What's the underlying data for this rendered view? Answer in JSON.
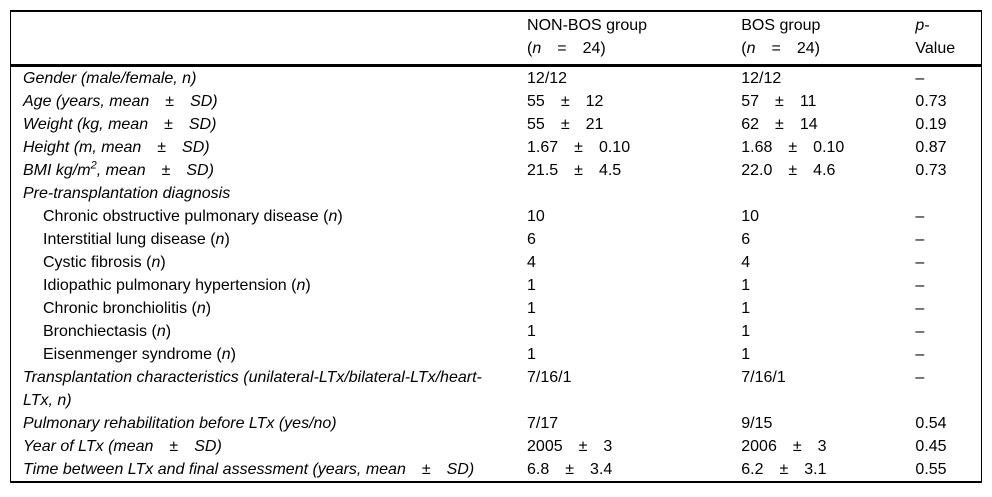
{
  "page": {
    "background": "#ffffff",
    "text_color": "#000000",
    "rule_color": "#000000"
  },
  "table": {
    "header": {
      "parameter": "",
      "non_bos": {
        "line1": "NON-BOS group",
        "l2a": "(",
        "l2n": "n",
        "l2b": " = 24)"
      },
      "bos": {
        "line1": "BOS group",
        "l2a": "(",
        "l2n": "n",
        "l2b": " = 24)"
      },
      "p": {
        "l1i": "p",
        "l1r": "-",
        "line2": "Value"
      }
    },
    "rows": [
      {
        "indent": false,
        "label": [
          {
            "t": "Gender (male/female, n)",
            "i": true
          }
        ],
        "non_bos": "12/12",
        "bos": "12/12",
        "p": "–"
      },
      {
        "indent": false,
        "label": [
          {
            "t": "Age (years, mean ± SD)",
            "i": true
          }
        ],
        "non_bos": "55 ± 12",
        "bos": "57 ± 11",
        "p": "0.73"
      },
      {
        "indent": false,
        "label": [
          {
            "t": "Weight (kg, mean ± SD)",
            "i": true
          }
        ],
        "non_bos": "55 ± 21",
        "bos": "62 ± 14",
        "p": "0.19"
      },
      {
        "indent": false,
        "label": [
          {
            "t": "Height (m, mean ± SD)",
            "i": true
          }
        ],
        "non_bos": "1.67 ± 0.10",
        "bos": "1.68 ± 0.10",
        "p": "0.87"
      },
      {
        "indent": false,
        "label": [
          {
            "t": "BMI kg/m",
            "i": true
          },
          {
            "t": "2",
            "i": true,
            "sup": true
          },
          {
            "t": ", mean ± SD)",
            "i": true
          }
        ],
        "non_bos": "21.5 ± 4.5",
        "bos": "22.0 ± 4.6",
        "p": "0.73"
      },
      {
        "indent": false,
        "label": [
          {
            "t": "Pre-transplantation diagnosis",
            "i": true
          }
        ],
        "non_bos": "",
        "bos": "",
        "p": ""
      },
      {
        "indent": true,
        "label": [
          {
            "t": "Chronic obstructive pulmonary disease ("
          },
          {
            "t": "n",
            "i": true
          },
          {
            "t": ")"
          }
        ],
        "non_bos": "10",
        "bos": "10",
        "p": "–"
      },
      {
        "indent": true,
        "label": [
          {
            "t": "Interstitial lung disease ("
          },
          {
            "t": "n",
            "i": true
          },
          {
            "t": ")"
          }
        ],
        "non_bos": "6",
        "bos": "6",
        "p": "–"
      },
      {
        "indent": true,
        "label": [
          {
            "t": "Cystic fibrosis ("
          },
          {
            "t": "n",
            "i": true
          },
          {
            "t": ")"
          }
        ],
        "non_bos": "4",
        "bos": "4",
        "p": "–"
      },
      {
        "indent": true,
        "label": [
          {
            "t": "Idiopathic pulmonary hypertension ("
          },
          {
            "t": "n",
            "i": true
          },
          {
            "t": ")"
          }
        ],
        "non_bos": "1",
        "bos": "1",
        "p": "–"
      },
      {
        "indent": true,
        "label": [
          {
            "t": "Chronic bronchiolitis ("
          },
          {
            "t": "n",
            "i": true
          },
          {
            "t": ")"
          }
        ],
        "non_bos": "1",
        "bos": "1",
        "p": "–"
      },
      {
        "indent": true,
        "label": [
          {
            "t": "Bronchiectasis ("
          },
          {
            "t": "n",
            "i": true
          },
          {
            "t": ")"
          }
        ],
        "non_bos": "1",
        "bos": "1",
        "p": "–"
      },
      {
        "indent": true,
        "label": [
          {
            "t": "Eisenmenger syndrome ("
          },
          {
            "t": "n",
            "i": true
          },
          {
            "t": ")"
          }
        ],
        "non_bos": "1",
        "bos": "1",
        "p": "–"
      },
      {
        "indent": false,
        "label": [
          {
            "t": "Transplantation characteristics (unilateral-LTx/bilateral-LTx/heart-",
            "i": true
          },
          {
            "br": true
          },
          {
            "t": "LTx, n)",
            "i": true
          }
        ],
        "non_bos": "7/16/1",
        "bos": "7/16/1",
        "p": "–"
      },
      {
        "indent": false,
        "label": [
          {
            "t": "Pulmonary rehabilitation before LTx (yes/no)",
            "i": true
          }
        ],
        "non_bos": "7/17",
        "bos": "9/15",
        "p": "0.54"
      },
      {
        "indent": false,
        "label": [
          {
            "t": "Year of LTx (mean ± SD)",
            "i": true
          }
        ],
        "non_bos": "2005 ± 3",
        "bos": "2006 ± 3",
        "p": "0.45"
      },
      {
        "indent": false,
        "label": [
          {
            "t": "Time between LTx and final assessment (years, mean ± SD)",
            "i": true
          }
        ],
        "non_bos": "6.8 ± 3.4",
        "bos": "6.2 ± 3.1",
        "p": "0.55"
      }
    ]
  }
}
